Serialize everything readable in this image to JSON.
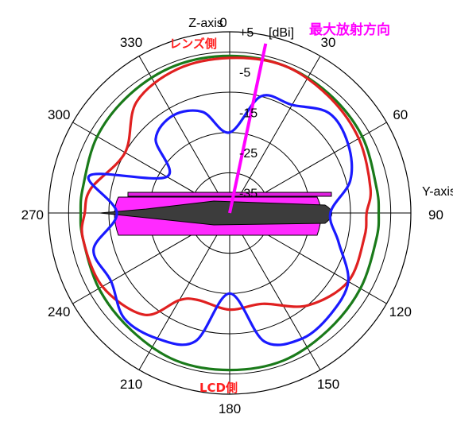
{
  "chart_data": {
    "type": "polar",
    "unit_label": "[dBi]",
    "r_range": [
      -40,
      5
    ],
    "r_ticks": [
      "+5",
      "-5",
      "-15",
      "-25",
      "-35"
    ],
    "angle_ticks": [
      "0",
      "30",
      "60",
      "90",
      "120",
      "150",
      "180",
      "210",
      "240",
      "270",
      "300",
      "330"
    ],
    "axis_labels": {
      "z": "Z-axis",
      "y": "Y-axis"
    },
    "annotations": {
      "lens_side": "レンズ側",
      "lcd_side": "LCD側",
      "max_direction": "最大放射方向"
    },
    "max_direction_deg": 12,
    "max_direction_value_dbi": 3,
    "series": [
      {
        "color": "#1a7a1a",
        "angles": [
          0,
          20,
          40,
          60,
          80,
          90,
          100,
          120,
          140,
          160,
          180,
          200,
          220,
          240,
          260,
          270,
          280,
          300,
          320,
          340
        ],
        "values": [
          -1,
          -1,
          -1.5,
          -2,
          -3,
          -3,
          -3,
          -2.5,
          -2,
          -1,
          -1,
          -1,
          -2,
          -2.5,
          -3,
          -3,
          -3,
          -2,
          -1.5,
          -1
        ]
      },
      {
        "color": "#e02020",
        "angles": [
          0,
          20,
          40,
          60,
          80,
          90,
          100,
          120,
          140,
          160,
          180,
          200,
          210,
          220,
          240,
          260,
          270,
          280,
          300,
          320,
          340
        ],
        "values": [
          -1.5,
          -1,
          -2,
          -3,
          -4.5,
          -6,
          -6,
          -6,
          -10,
          -16,
          -16,
          -17,
          -15,
          -7,
          -3.5,
          -3,
          -4,
          -5,
          -10,
          -4,
          -2
        ]
      },
      {
        "color": "#1a1aff",
        "angles": [
          0,
          15,
          30,
          45,
          60,
          75,
          90,
          105,
          120,
          135,
          150,
          165,
          180,
          195,
          210,
          225,
          240,
          255,
          270,
          285,
          300,
          315,
          330,
          345
        ],
        "values": [
          -20,
          -10,
          -9,
          -5,
          -6,
          -9,
          -15,
          -12,
          -6,
          -4.5,
          -4,
          -7,
          -20,
          -7,
          -4,
          -3,
          -6,
          -5,
          -12,
          -4,
          -22,
          -14,
          -12,
          -14
        ]
      }
    ]
  }
}
